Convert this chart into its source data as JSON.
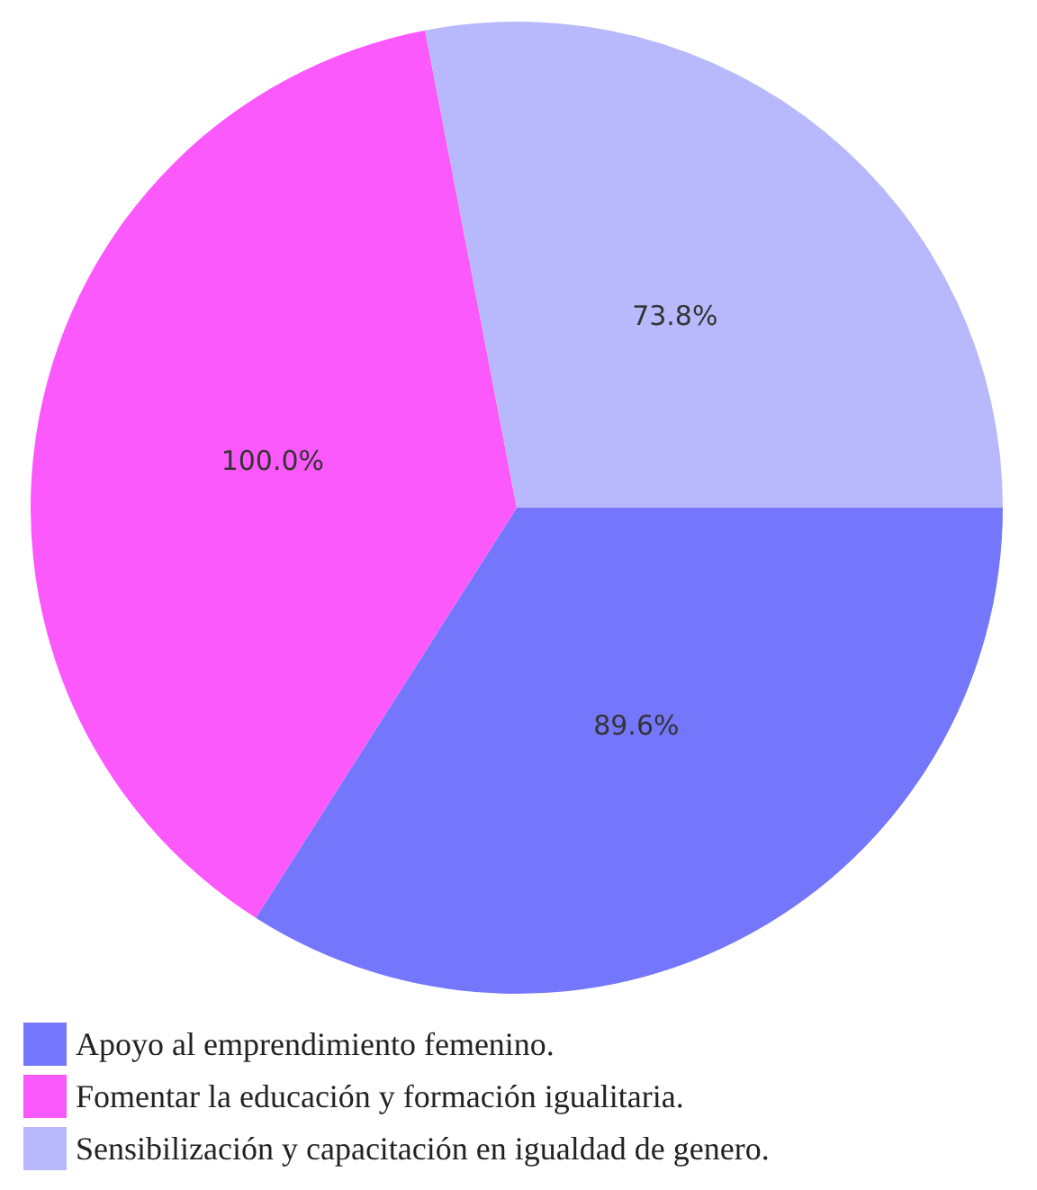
{
  "chart_data": {
    "type": "pie",
    "categories": [
      "Apoyo al emprendimiento femenino.",
      "Fomentar la educación y formación igualitaria.",
      "Sensibilización y capacitación en igualdad de genero."
    ],
    "values": [
      89.6,
      100.0,
      73.8
    ],
    "value_labels": [
      "89.6%",
      "100.0%",
      "73.8%"
    ],
    "colors": [
      "#7477fb",
      "#fc59fc",
      "#b8b9fc"
    ],
    "legend": "bottom left"
  }
}
